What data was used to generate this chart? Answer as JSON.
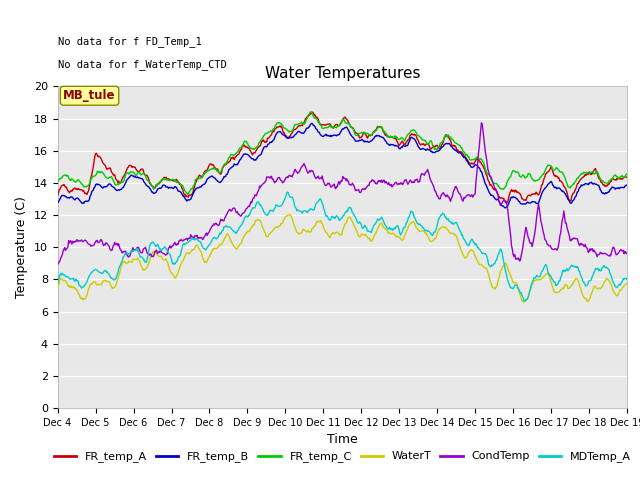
{
  "title": "Water Temperatures",
  "xlabel": "Time",
  "ylabel": "Temperature (C)",
  "xlim": [
    0,
    360
  ],
  "ylim": [
    0,
    20
  ],
  "yticks": [
    0,
    2,
    4,
    6,
    8,
    10,
    12,
    14,
    16,
    18,
    20
  ],
  "xtick_labels": [
    "Dec 4",
    "Dec 5",
    "Dec 6",
    "Dec 7",
    "Dec 8",
    "Dec 9",
    "Dec 10",
    "Dec 11",
    "Dec 12",
    "Dec 13",
    "Dec 14",
    "Dec 15",
    "Dec 16",
    "Dec 17",
    "Dec 18",
    "Dec 19"
  ],
  "annotation1": "No data for f FD_Temp_1",
  "annotation2": "No data for f_WaterTemp_CTD",
  "mb_tule_label": "MB_tule",
  "legend_entries": [
    "FR_temp_A",
    "FR_temp_B",
    "FR_temp_C",
    "WaterT",
    "CondTemp",
    "MDTemp_A"
  ],
  "legend_colors": [
    "#cc0000",
    "#0000cc",
    "#00cc00",
    "#cccc00",
    "#9900cc",
    "#00cccc"
  ],
  "bg_color": "#e8e8e8",
  "fig_color": "#ffffff",
  "title_fontsize": 11,
  "axis_fontsize": 9,
  "tick_fontsize": 8,
  "n_points": 720
}
